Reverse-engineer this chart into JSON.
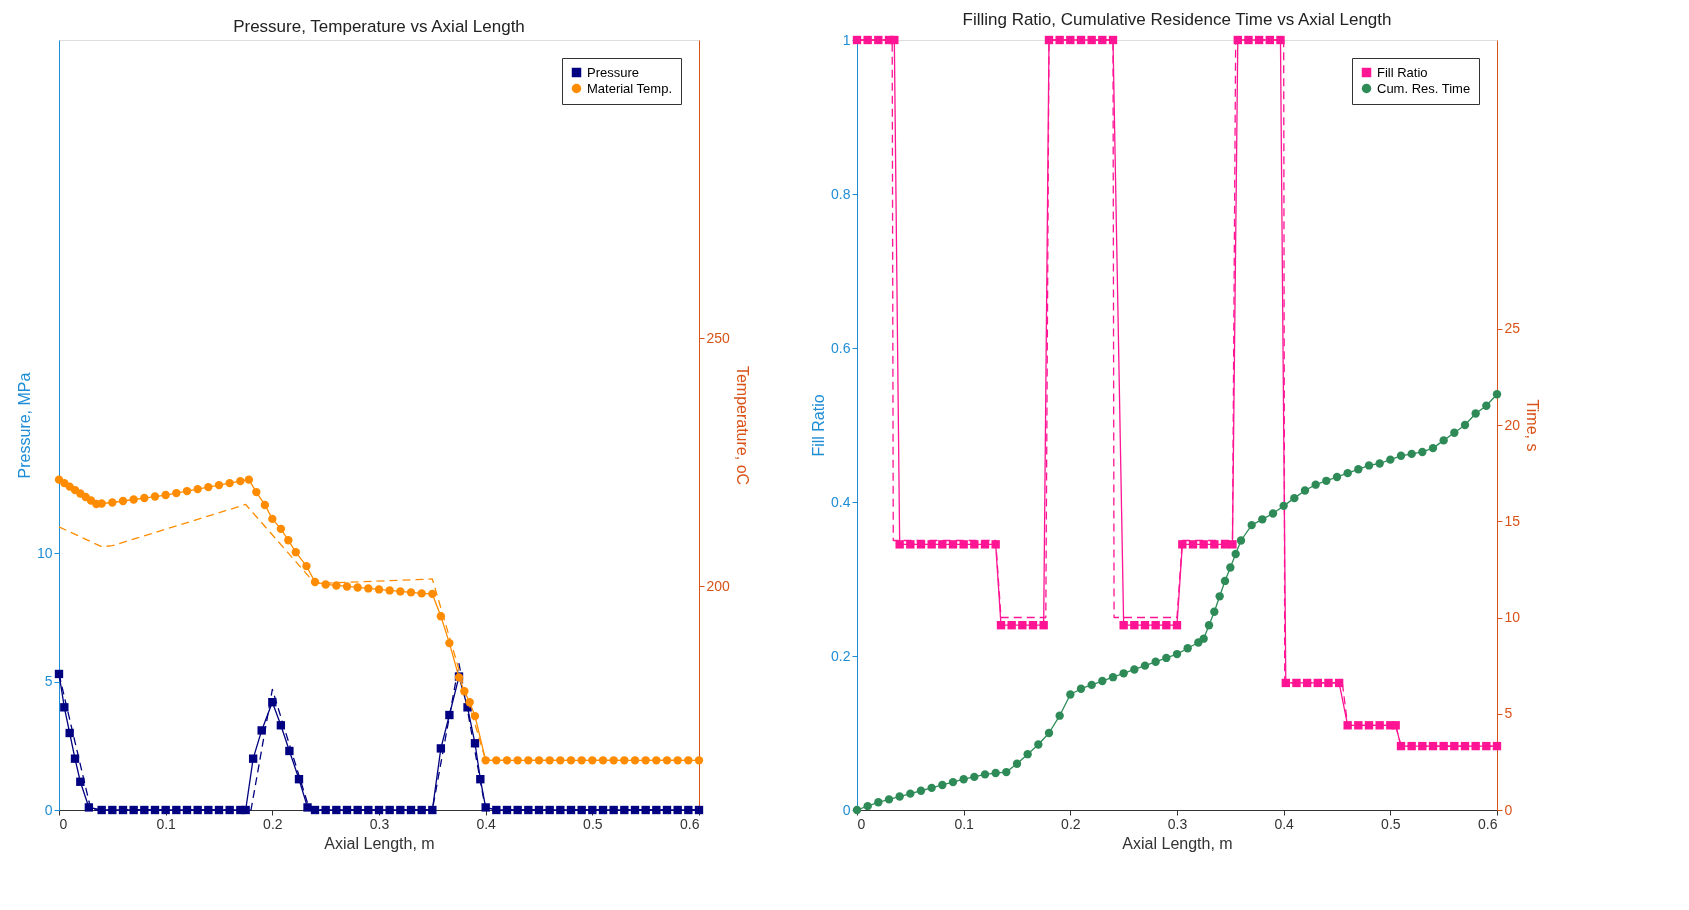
{
  "chart_data": [
    {
      "type": "line",
      "title": "Pressure, Temperature vs Axial Length",
      "xlabel": "Axial Length, m",
      "ylabel": "Pressure, MPa",
      "y2label": "Temperature, oC",
      "xlim": [
        0,
        0.6
      ],
      "xticks": [
        0,
        0.1,
        0.2,
        0.3,
        0.4,
        0.5,
        0.6
      ],
      "ylim": [
        0,
        30
      ],
      "yticks": [
        0,
        5,
        10
      ],
      "y2lim": [
        155,
        310
      ],
      "y2ticks": [
        200,
        250
      ],
      "grid": false,
      "legend": "top right",
      "series": [
        {
          "color": "#000080",
          "line_style": "dashed",
          "marker": "none",
          "x": [
            0,
            0.03,
            0.18,
            0.2,
            0.235,
            0.35,
            0.375,
            0.4,
            0.6
          ],
          "values": [
            5.3,
            0,
            0,
            4.7,
            0,
            0,
            5.7,
            0,
            0
          ]
        },
        {
          "color": "#ff8c00",
          "line_style": "dashed",
          "marker": "none",
          "axis": "y2",
          "x": [
            0,
            0.04,
            0.05,
            0.175,
            0.24,
            0.35,
            0.4,
            0.6
          ],
          "values": [
            212,
            208,
            208.2,
            216.5,
            200.6,
            201.5,
            165,
            165
          ]
        },
        {
          "name": "Pressure",
          "color": "#000080",
          "line_style": "solid",
          "marker": "square",
          "x": [
            0,
            0.005,
            0.01,
            0.015,
            0.02,
            0.028,
            0.04,
            0.05,
            0.06,
            0.07,
            0.08,
            0.09,
            0.1,
            0.11,
            0.12,
            0.13,
            0.14,
            0.15,
            0.16,
            0.17,
            0.175,
            0.182,
            0.19,
            0.2,
            0.208,
            0.216,
            0.225,
            0.233,
            0.24,
            0.25,
            0.26,
            0.27,
            0.28,
            0.29,
            0.3,
            0.31,
            0.32,
            0.33,
            0.34,
            0.35,
            0.358,
            0.366,
            0.375,
            0.383,
            0.39,
            0.395,
            0.4,
            0.41,
            0.42,
            0.43,
            0.44,
            0.45,
            0.46,
            0.47,
            0.48,
            0.49,
            0.5,
            0.51,
            0.52,
            0.53,
            0.54,
            0.55,
            0.56,
            0.57,
            0.58,
            0.59,
            0.6
          ],
          "values": [
            5.3,
            4.0,
            3.0,
            2.0,
            1.1,
            0.1,
            0,
            0,
            0,
            0,
            0,
            0,
            0,
            0,
            0,
            0,
            0,
            0,
            0,
            0,
            0,
            2.0,
            3.1,
            4.2,
            3.3,
            2.3,
            1.2,
            0.1,
            0,
            0,
            0,
            0,
            0,
            0,
            0,
            0,
            0,
            0,
            0,
            0,
            2.4,
            3.7,
            5.2,
            4.0,
            2.6,
            1.2,
            0.1,
            0,
            0,
            0,
            0,
            0,
            0,
            0,
            0,
            0,
            0,
            0,
            0,
            0,
            0,
            0,
            0,
            0,
            0,
            0,
            0
          ]
        },
        {
          "name": "Material Temp.",
          "color": "#ff8c00",
          "line_style": "solid",
          "marker": "circle",
          "axis": "y2",
          "x": [
            0,
            0.005,
            0.01,
            0.015,
            0.02,
            0.025,
            0.03,
            0.035,
            0.04,
            0.05,
            0.06,
            0.07,
            0.08,
            0.09,
            0.1,
            0.11,
            0.12,
            0.13,
            0.14,
            0.15,
            0.16,
            0.17,
            0.178,
            0.185,
            0.193,
            0.2,
            0.208,
            0.215,
            0.222,
            0.232,
            0.24,
            0.25,
            0.26,
            0.27,
            0.28,
            0.29,
            0.3,
            0.31,
            0.32,
            0.33,
            0.34,
            0.35,
            0.358,
            0.366,
            0.375,
            0.38,
            0.385,
            0.39,
            0.4,
            0.41,
            0.42,
            0.43,
            0.44,
            0.45,
            0.46,
            0.47,
            0.48,
            0.49,
            0.5,
            0.51,
            0.52,
            0.53,
            0.54,
            0.55,
            0.56,
            0.57,
            0.58,
            0.59,
            0.6
          ],
          "values": [
            221.5,
            220.8,
            220.1,
            219.4,
            218.7,
            218,
            217.3,
            216.6,
            216.7,
            216.9,
            217.2,
            217.5,
            217.8,
            218.1,
            218.4,
            218.8,
            219.2,
            219.6,
            220,
            220.4,
            220.8,
            221.2,
            221.5,
            219,
            216.4,
            213.6,
            211.6,
            209.3,
            206.9,
            204.1,
            200.9,
            200.4,
            200.2,
            200,
            199.8,
            199.6,
            199.4,
            199.2,
            199,
            198.8,
            198.6,
            198.5,
            194,
            188.6,
            181.7,
            178.9,
            176.7,
            173.9,
            165,
            165,
            165,
            165,
            165,
            165,
            165,
            165,
            165,
            165,
            165,
            165,
            165,
            165,
            165,
            165,
            165,
            165,
            165,
            165,
            165
          ]
        }
      ]
    },
    {
      "type": "line",
      "title": "Filling Ratio, Cumulative Residence Time vs Axial Length",
      "xlabel": "Axial Length, m",
      "ylabel": "Fill Ratio",
      "y2label": "Time, s",
      "xlim": [
        0,
        0.6
      ],
      "xticks": [
        0,
        0.1,
        0.2,
        0.3,
        0.4,
        0.5,
        0.6
      ],
      "ylim": [
        0,
        1
      ],
      "yticks": [
        0,
        0.2,
        0.4,
        0.6,
        0.8,
        1
      ],
      "y2lim": [
        0,
        40
      ],
      "y2ticks": [
        0,
        5,
        10,
        15,
        20,
        25
      ],
      "grid": false,
      "legend": "top right",
      "series": [
        {
          "color": "#ff1493",
          "line_style": "dashed",
          "marker": "none",
          "x": [
            0,
            0.033,
            0.034,
            0.13,
            0.135,
            0.177,
            0.18,
            0.24,
            0.241,
            0.3,
            0.305,
            0.352,
            0.355,
            0.4,
            0.401,
            0.455,
            0.46,
            0.505,
            0.51,
            0.6
          ],
          "values": [
            1,
            1,
            0.35,
            0.35,
            0.25,
            0.25,
            1,
            1,
            0.25,
            0.25,
            0.35,
            0.35,
            1,
            1,
            0.165,
            0.165,
            0.11,
            0.11,
            0.083,
            0.083
          ]
        },
        {
          "name": "Fill Ratio",
          "color": "#ff1493",
          "line_style": "solid",
          "marker": "square",
          "x": [
            0,
            0.01,
            0.02,
            0.03,
            0.035,
            0.04,
            0.05,
            0.06,
            0.07,
            0.08,
            0.09,
            0.1,
            0.11,
            0.12,
            0.13,
            0.135,
            0.145,
            0.155,
            0.165,
            0.175,
            0.18,
            0.19,
            0.2,
            0.21,
            0.22,
            0.23,
            0.24,
            0.25,
            0.26,
            0.27,
            0.28,
            0.29,
            0.3,
            0.305,
            0.315,
            0.325,
            0.335,
            0.345,
            0.352,
            0.357,
            0.367,
            0.377,
            0.387,
            0.397,
            0.402,
            0.412,
            0.422,
            0.432,
            0.442,
            0.452,
            0.46,
            0.47,
            0.48,
            0.49,
            0.5,
            0.505,
            0.51,
            0.52,
            0.53,
            0.54,
            0.55,
            0.56,
            0.57,
            0.58,
            0.59,
            0.6
          ],
          "values": [
            1,
            1,
            1,
            1,
            1,
            0.345,
            0.345,
            0.345,
            0.345,
            0.345,
            0.345,
            0.345,
            0.345,
            0.345,
            0.345,
            0.24,
            0.24,
            0.24,
            0.24,
            0.24,
            1,
            1,
            1,
            1,
            1,
            1,
            1,
            0.24,
            0.24,
            0.24,
            0.24,
            0.24,
            0.24,
            0.345,
            0.345,
            0.345,
            0.345,
            0.345,
            0.345,
            1,
            1,
            1,
            1,
            1,
            0.165,
            0.165,
            0.165,
            0.165,
            0.165,
            0.165,
            0.11,
            0.11,
            0.11,
            0.11,
            0.11,
            0.11,
            0.083,
            0.083,
            0.083,
            0.083,
            0.083,
            0.083,
            0.083,
            0.083,
            0.083,
            0.083
          ]
        },
        {
          "name": "Cum. Res. Time",
          "color": "#2e8b57",
          "line_style": "solid",
          "marker": "circle",
          "axis": "y2",
          "x": [
            0,
            0.01,
            0.02,
            0.03,
            0.04,
            0.05,
            0.06,
            0.07,
            0.08,
            0.09,
            0.1,
            0.11,
            0.12,
            0.13,
            0.14,
            0.15,
            0.16,
            0.17,
            0.18,
            0.19,
            0.2,
            0.21,
            0.22,
            0.23,
            0.24,
            0.25,
            0.26,
            0.27,
            0.28,
            0.29,
            0.3,
            0.31,
            0.32,
            0.325,
            0.33,
            0.335,
            0.34,
            0.345,
            0.35,
            0.355,
            0.36,
            0.37,
            0.38,
            0.39,
            0.4,
            0.41,
            0.42,
            0.43,
            0.44,
            0.45,
            0.46,
            0.47,
            0.48,
            0.49,
            0.5,
            0.51,
            0.52,
            0.53,
            0.54,
            0.55,
            0.56,
            0.57,
            0.58,
            0.59,
            0.6
          ],
          "values": [
            0,
            0.2,
            0.4,
            0.55,
            0.7,
            0.85,
            1.0,
            1.15,
            1.3,
            1.45,
            1.6,
            1.72,
            1.85,
            1.92,
            1.97,
            2.4,
            2.9,
            3.4,
            4.0,
            4.9,
            6.0,
            6.3,
            6.5,
            6.7,
            6.9,
            7.1,
            7.3,
            7.5,
            7.7,
            7.9,
            8.1,
            8.4,
            8.7,
            8.9,
            9.6,
            10.3,
            11.1,
            11.9,
            12.6,
            13.3,
            14.0,
            14.8,
            15.1,
            15.4,
            15.8,
            16.2,
            16.6,
            16.9,
            17.1,
            17.3,
            17.5,
            17.7,
            17.9,
            18.0,
            18.2,
            18.4,
            18.5,
            18.6,
            18.8,
            19.2,
            19.6,
            20.0,
            20.6,
            21.0,
            21.6
          ]
        }
      ]
    }
  ]
}
